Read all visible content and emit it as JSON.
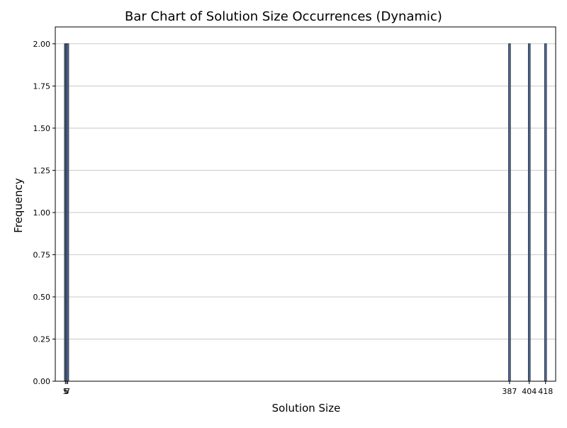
{
  "chart_data": {
    "type": "bar",
    "title": "Bar Chart of Solution Size Occurrences (Dynamic)",
    "xlabel": "Solution Size",
    "ylabel": "Frequency",
    "x": [
      5,
      6,
      7,
      387,
      404,
      418
    ],
    "values": [
      2,
      2,
      2,
      2,
      2,
      2
    ],
    "xticks": [
      5,
      6,
      7,
      387,
      404,
      418
    ],
    "xtick_labels": [
      "5",
      "6",
      "7",
      "387",
      "404",
      "418"
    ],
    "yticks": [
      0.0,
      0.25,
      0.5,
      0.75,
      1.0,
      1.25,
      1.5,
      1.75,
      2.0
    ],
    "ytick_labels": [
      "0.00",
      "0.25",
      "0.50",
      "0.75",
      "1.00",
      "1.25",
      "1.50",
      "1.75",
      "2.00"
    ],
    "xlim": [
      -3.7,
      426.7
    ],
    "ylim": [
      0,
      2.1
    ],
    "grid": "y-axis",
    "colors": {
      "bar_fill": "#4c72b0",
      "bar_edge": "#333333",
      "grid": "#c8c8c8"
    }
  }
}
